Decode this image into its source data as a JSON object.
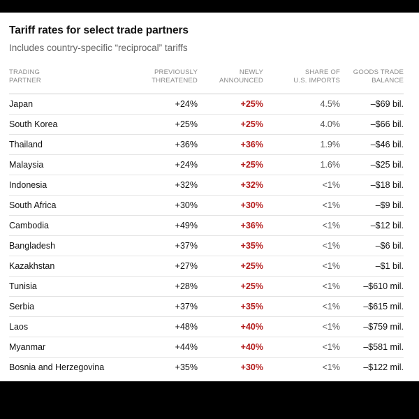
{
  "title": "Tariff rates for select trade partners",
  "subtitle": "Includes country-specific “reciprocal” tariffs",
  "columns": {
    "partner": [
      "TRADING",
      "PARTNER"
    ],
    "previous": [
      "PREVIOUSLY",
      "THREATENED"
    ],
    "new": [
      "NEWLY",
      "ANNOUNCED"
    ],
    "share": [
      "SHARE OF",
      "U.S. IMPORTS"
    ],
    "balance": [
      "GOODS TRADE",
      "BALANCE"
    ]
  },
  "colors": {
    "accent": "#b31b1b",
    "text": "#121212",
    "muted": "#666666"
  },
  "rows": [
    {
      "partner": "Japan",
      "previous": "+24%",
      "new": "+25%",
      "share": "4.5%",
      "balance": "–$69 bil."
    },
    {
      "partner": "South Korea",
      "previous": "+25%",
      "new": "+25%",
      "share": "4.0%",
      "balance": "–$66 bil."
    },
    {
      "partner": "Thailand",
      "previous": "+36%",
      "new": "+36%",
      "share": "1.9%",
      "balance": "–$46 bil."
    },
    {
      "partner": "Malaysia",
      "previous": "+24%",
      "new": "+25%",
      "share": "1.6%",
      "balance": "–$25 bil."
    },
    {
      "partner": "Indonesia",
      "previous": "+32%",
      "new": "+32%",
      "share": "<1%",
      "balance": "–$18 bil."
    },
    {
      "partner": "South Africa",
      "previous": "+30%",
      "new": "+30%",
      "share": "<1%",
      "balance": "–$9 bil."
    },
    {
      "partner": "Cambodia",
      "previous": "+49%",
      "new": "+36%",
      "share": "<1%",
      "balance": "–$12 bil."
    },
    {
      "partner": "Bangladesh",
      "previous": "+37%",
      "new": "+35%",
      "share": "<1%",
      "balance": "–$6 bil."
    },
    {
      "partner": "Kazakhstan",
      "previous": "+27%",
      "new": "+25%",
      "share": "<1%",
      "balance": "–$1 bil."
    },
    {
      "partner": "Tunisia",
      "previous": "+28%",
      "new": "+25%",
      "share": "<1%",
      "balance": "–$610 mil."
    },
    {
      "partner": "Serbia",
      "previous": "+37%",
      "new": "+35%",
      "share": "<1%",
      "balance": "–$615 mil."
    },
    {
      "partner": "Laos",
      "previous": "+48%",
      "new": "+40%",
      "share": "<1%",
      "balance": "–$759 mil."
    },
    {
      "partner": "Myanmar",
      "previous": "+44%",
      "new": "+40%",
      "share": "<1%",
      "balance": "–$581 mil."
    },
    {
      "partner": "Bosnia and Herzegovina",
      "previous": "+35%",
      "new": "+30%",
      "share": "<1%",
      "balance": "–$122 mil."
    }
  ]
}
